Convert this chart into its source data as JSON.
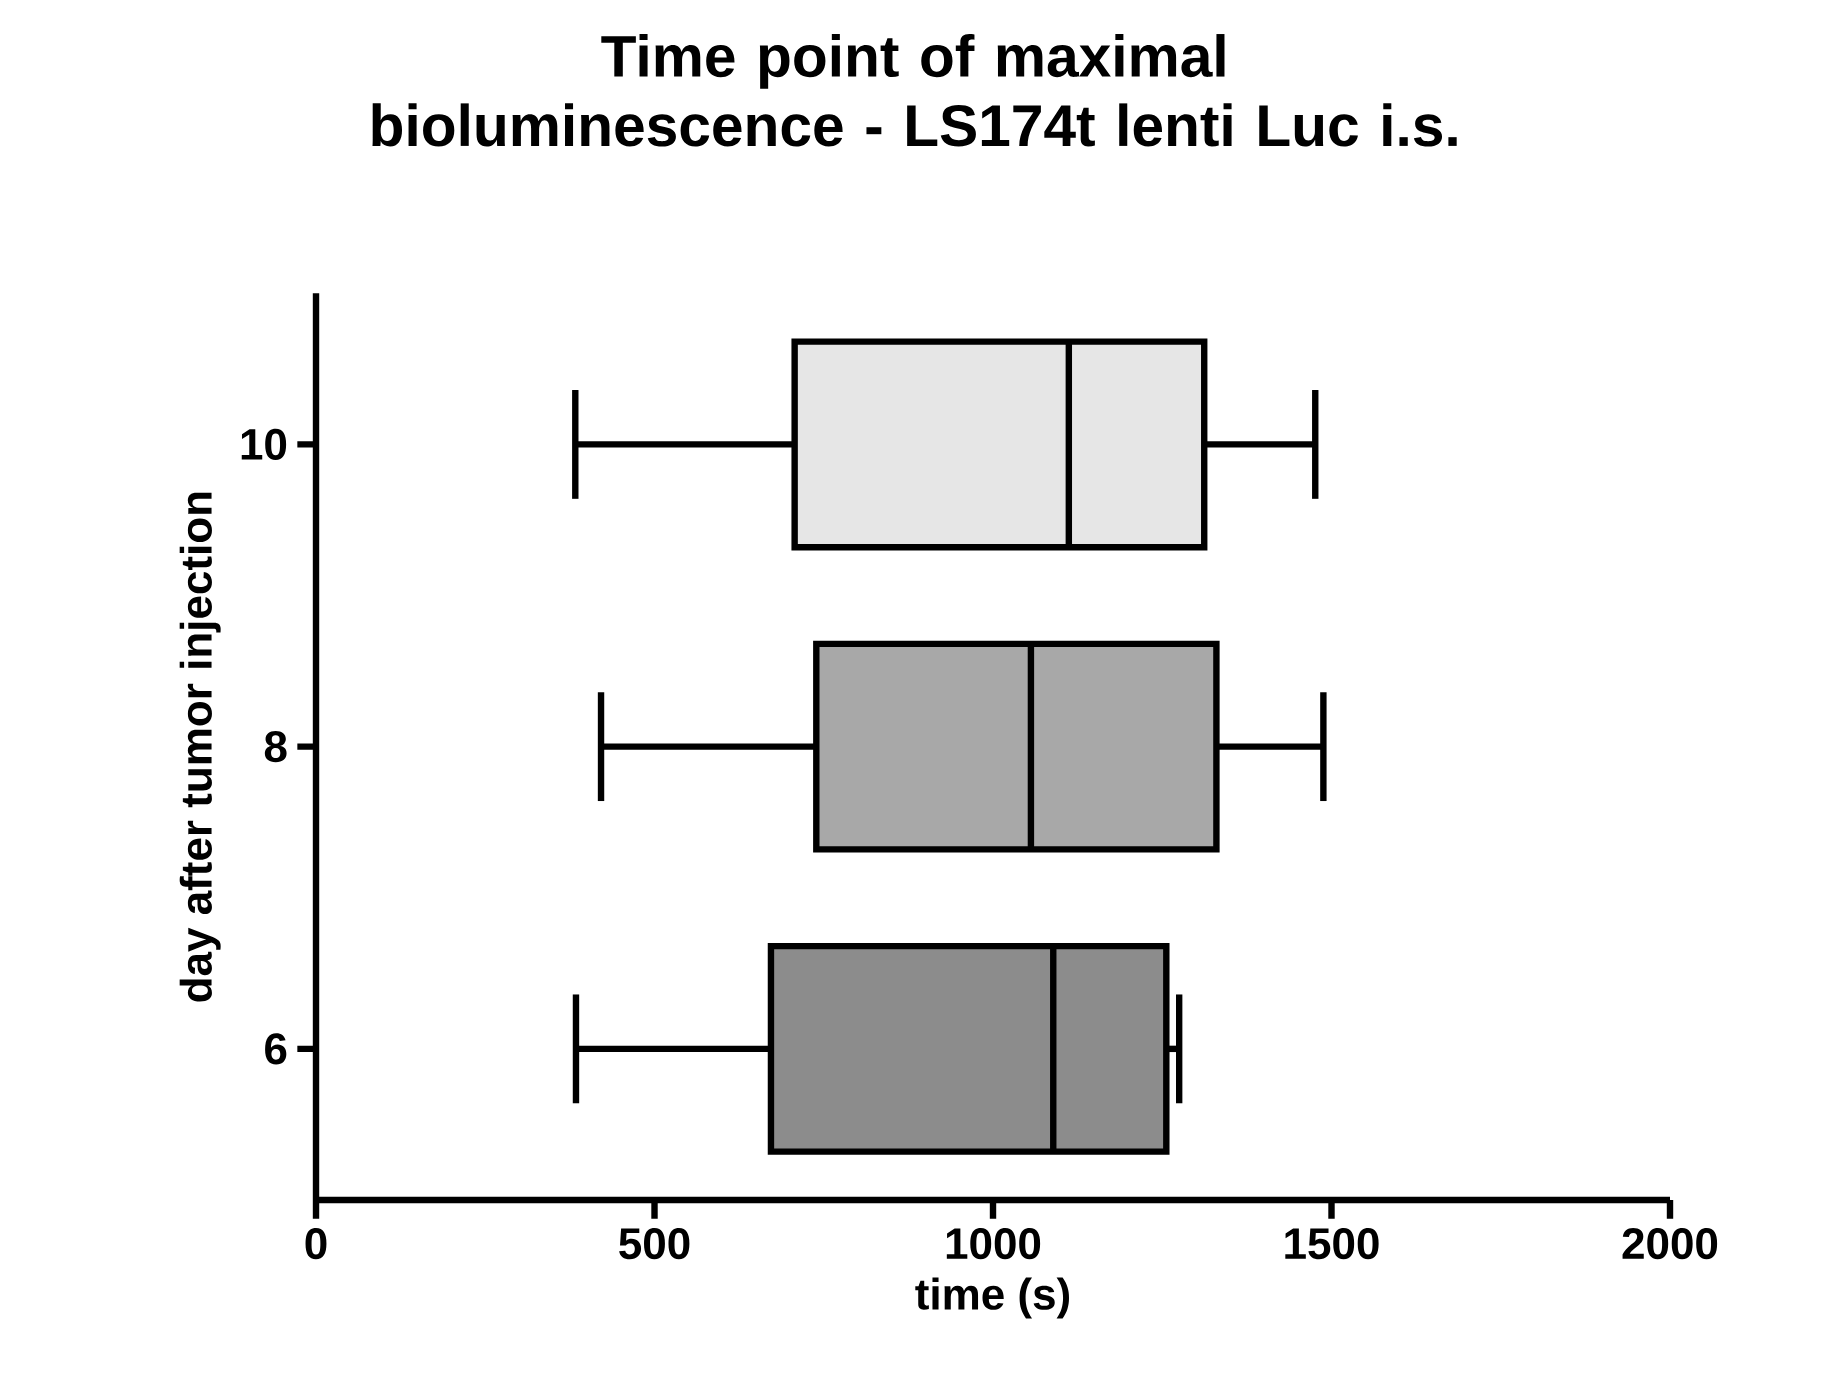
{
  "chart_data": {
    "type": "box",
    "title": "Time point of maximal bioluminescence - LS174t lenti Luc i.s.",
    "xlabel": "time (s)",
    "ylabel": "day after tumor injection",
    "orientation": "horizontal",
    "categories": [
      "10",
      "8",
      "6"
    ],
    "boxes": [
      {
        "low": 383,
        "q1": 707,
        "median": 1112,
        "q3": 1312,
        "high": 1476
      },
      {
        "low": 421,
        "q1": 739,
        "median": 1056,
        "q3": 1330,
        "high": 1488
      },
      {
        "low": 384,
        "q1": 672,
        "median": 1089,
        "q3": 1256,
        "high": 1275
      }
    ],
    "colors": [
      "#e6e6e6",
      "#a8a8a8",
      "#8c8c8c"
    ],
    "xlim": [
      0,
      2000
    ],
    "xticks": [
      0,
      500,
      1000,
      1500,
      2000
    ]
  }
}
